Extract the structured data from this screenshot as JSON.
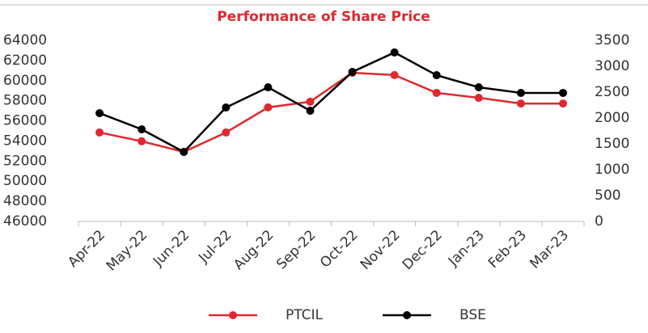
{
  "chart_data": {
    "type": "line",
    "title": "Performance of Share Price",
    "categories": [
      "Apr-22",
      "May-22",
      "Jun-22",
      "Jul-22",
      "Aug-22",
      "Sep-22",
      "Oct-22",
      "Nov-22",
      "Dec-22",
      "Jan-23",
      "Feb-23",
      "Mar-23"
    ],
    "series": [
      {
        "name": "PTCIL",
        "color": "#e0282e",
        "axis": "y2",
        "values": [
          1720,
          1550,
          1345,
          1720,
          2205,
          2315,
          2875,
          2830,
          2485,
          2390,
          2280,
          2280
        ]
      },
      {
        "name": "BSE",
        "color": "#000000",
        "values": [
          56770,
          55160,
          52910,
          57330,
          59340,
          57010,
          60870,
          62800,
          60540,
          59340,
          58780,
          58780
        ]
      }
    ],
    "ylim": [
      46000,
      64000
    ],
    "yticks": [
      46000,
      48000,
      50000,
      52000,
      54000,
      56000,
      58000,
      60000,
      62000,
      64000
    ],
    "y2lim": [
      0,
      3500
    ],
    "y2ticks": [
      0,
      500,
      1000,
      1500,
      2000,
      2500,
      3000,
      3500
    ],
    "legend": "bottom"
  }
}
